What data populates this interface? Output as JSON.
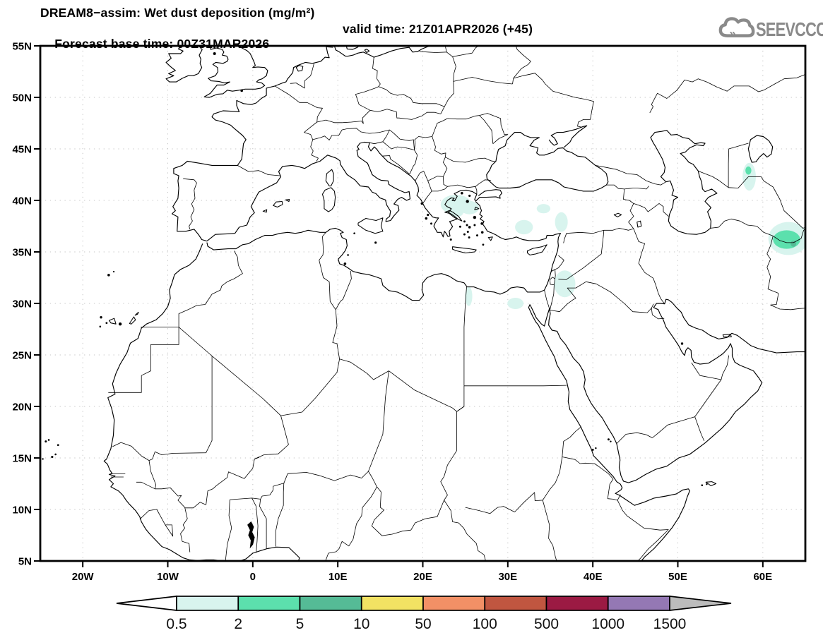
{
  "header": {
    "title": "DREAM8−assim: Wet dust deposition (mg/m²)",
    "forecast_base": "Forecast base time: 00Z31MAR2026",
    "valid_time": "valid time: 21Z01APR2026 (+45)"
  },
  "logo": {
    "text": "SEEVCCC",
    "color": "#8a8a8a"
  },
  "axes": {
    "lat_ticks": [
      {
        "label": "55N",
        "value": 55
      },
      {
        "label": "50N",
        "value": 50
      },
      {
        "label": "45N",
        "value": 45
      },
      {
        "label": "40N",
        "value": 40
      },
      {
        "label": "35N",
        "value": 35
      },
      {
        "label": "30N",
        "value": 30
      },
      {
        "label": "25N",
        "value": 25
      },
      {
        "label": "20N",
        "value": 20
      },
      {
        "label": "15N",
        "value": 15
      },
      {
        "label": "10N",
        "value": 10
      },
      {
        "label": "5N",
        "value": 5
      }
    ],
    "lon_ticks": [
      {
        "label": "20W",
        "value": -20
      },
      {
        "label": "10W",
        "value": -10
      },
      {
        "label": "0",
        "value": 0
      },
      {
        "label": "10E",
        "value": 10
      },
      {
        "label": "20E",
        "value": 20
      },
      {
        "label": "30E",
        "value": 30
      },
      {
        "label": "40E",
        "value": 40
      },
      {
        "label": "50E",
        "value": 50
      },
      {
        "label": "60E",
        "value": 60
      }
    ]
  },
  "chart_data": {
    "type": "heatmap",
    "title": "DREAM8−assim: Wet dust deposition (mg/m²)",
    "model": "DREAM8-assim",
    "variable": "Wet dust deposition",
    "units": "mg/m²",
    "base_time": "00Z31MAR2026",
    "valid_time": "21Z01APR2026 (+45)",
    "extent": {
      "lon_min": -25,
      "lon_max": 65,
      "lat_min": 5,
      "lat_max": 55
    },
    "gridlines": {
      "lat_step": 5,
      "lon_step": 10,
      "style": "dotted"
    },
    "colorbar": {
      "levels": [
        "0.5",
        "2",
        "5",
        "10",
        "50",
        "100",
        "500",
        "1000",
        "1500"
      ],
      "colors": [
        "#ffffff",
        "#d8f4ee",
        "#5ce0ad",
        "#55bb96",
        "#f2e263",
        "#f29066",
        "#c05640",
        "#9b1a43",
        "#9478b4",
        "#bcbcbc"
      ]
    },
    "regions": [
      {
        "name": "north-aegean",
        "lon": 23.9,
        "lat": 39.6,
        "rx": 1.8,
        "ry": 0.95,
        "level": 1
      },
      {
        "name": "east-aegean",
        "lon": 25.5,
        "lat": 39.3,
        "rx": 1.1,
        "ry": 0.65,
        "level": 1
      },
      {
        "name": "attica",
        "lon": 24.0,
        "lat": 38.9,
        "rx": 0.8,
        "ry": 0.5,
        "level": 1
      },
      {
        "name": "central-anatolia",
        "lon": 34.2,
        "lat": 39.2,
        "rx": 0.8,
        "ry": 0.45,
        "level": 1
      },
      {
        "name": "se-anatolia",
        "lon": 36.3,
        "lat": 37.9,
        "rx": 0.75,
        "ry": 0.95,
        "level": 1
      },
      {
        "name": "taurus-west",
        "lon": 31.9,
        "lat": 37.4,
        "rx": 1.05,
        "ry": 0.7,
        "level": 1
      },
      {
        "name": "levant",
        "lon": 36.7,
        "lat": 31.9,
        "rx": 1.25,
        "ry": 1.3,
        "level": 1
      },
      {
        "name": "nile-delta",
        "lon": 30.9,
        "lat": 30.0,
        "rx": 0.95,
        "ry": 0.55,
        "level": 1
      },
      {
        "name": "egypt-libya-border",
        "lon": 25.4,
        "lat": 30.7,
        "rx": 0.42,
        "ry": 0.95,
        "level": 1
      },
      {
        "name": "south-aral",
        "lon": 58.4,
        "lat": 42.3,
        "rx": 0.78,
        "ry": 1.35,
        "level": 1
      },
      {
        "name": "south-aral-core",
        "lon": 58.3,
        "lat": 42.9,
        "rx": 0.35,
        "ry": 0.4,
        "level": 2
      },
      {
        "name": "ne-iran-outer",
        "lon": 63.0,
        "lat": 36.3,
        "rx": 2.35,
        "ry": 1.6,
        "level": 1
      },
      {
        "name": "ne-iran-core",
        "lon": 62.8,
        "lat": 36.2,
        "rx": 1.6,
        "ry": 0.9,
        "level": 2
      },
      {
        "name": "ne-iran-max",
        "lon": 63.6,
        "lat": 35.8,
        "rx": 0.33,
        "ry": 0.3,
        "level": 3
      }
    ]
  }
}
